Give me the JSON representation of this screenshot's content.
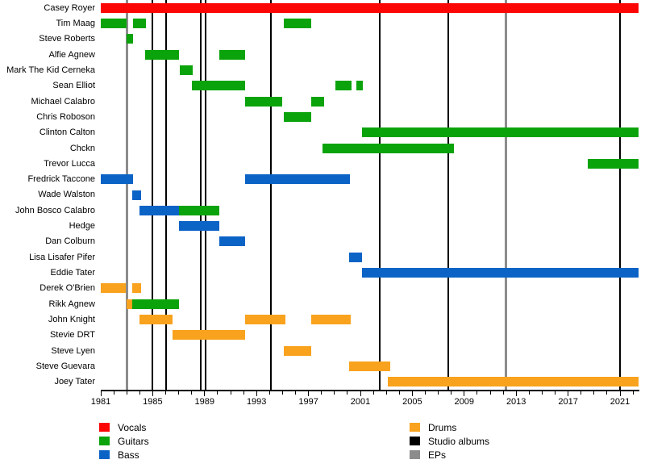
{
  "chart_data": {
    "type": "timeline",
    "title": "",
    "x_axis": {
      "start": 1981,
      "end": 2022.4,
      "minor_tick_step": 1,
      "label_years": [
        "1981",
        "1985",
        "1989",
        "1993",
        "1997",
        "2001",
        "2005",
        "2009",
        "2013",
        "2017",
        "2021"
      ]
    },
    "present": 2022.4,
    "roles": {
      "vocals": "#fb0505",
      "guitars": "#0ba30b",
      "bass": "#0b63c6",
      "drums": "#f9a21e"
    },
    "events": {
      "studio_albums": {
        "label": "Studio albums",
        "color": "#000000",
        "years": [
          1985.0,
          1986.0,
          1988.7,
          1989.1,
          1994.1,
          2002.5,
          2007.8,
          2021.0
        ]
      },
      "eps": {
        "label": "EPs",
        "color": "#8c8c8c",
        "years": [
          1983.0,
          2012.2
        ]
      }
    },
    "members": [
      {
        "name": "Casey Royer",
        "bars": [
          {
            "role": "vocals",
            "start": 1981,
            "end": "present"
          }
        ]
      },
      {
        "name": "Tim Maag",
        "bars": [
          {
            "role": "guitars",
            "start": 1981,
            "end": 1983.0
          },
          {
            "role": "guitars",
            "start": 1983.5,
            "end": 1984.5
          },
          {
            "role": "guitars",
            "start": 1995.1,
            "end": 1997.2
          }
        ]
      },
      {
        "name": "Steve Roberts",
        "bars": [
          {
            "role": "guitars",
            "start": 1983.0,
            "end": 1983.5
          }
        ]
      },
      {
        "name": "Alfie Agnew",
        "bars": [
          {
            "role": "guitars",
            "start": 1984.4,
            "end": 1987.0
          },
          {
            "role": "guitars",
            "start": 1990.1,
            "end": 1992.1
          }
        ]
      },
      {
        "name": "Mark The Kid Cerneka",
        "bars": [
          {
            "role": "guitars",
            "start": 1987.1,
            "end": 1988.1
          }
        ]
      },
      {
        "name": "Sean Elliot",
        "bars": [
          {
            "role": "guitars",
            "start": 1988.0,
            "end": 1992.1
          },
          {
            "role": "guitars",
            "start": 1999.1,
            "end": 2000.3
          },
          {
            "role": "guitars",
            "start": 2000.7,
            "end": 2001.2
          }
        ]
      },
      {
        "name": "Michael Calabro",
        "bars": [
          {
            "role": "guitars",
            "start": 1992.1,
            "end": 1995.0
          },
          {
            "role": "guitars",
            "start": 1997.2,
            "end": 1998.2
          }
        ]
      },
      {
        "name": "Chris Roboson",
        "bars": [
          {
            "role": "guitars",
            "start": 1995.1,
            "end": 1997.2
          }
        ]
      },
      {
        "name": "Clinton Calton",
        "bars": [
          {
            "role": "guitars",
            "start": 2001.1,
            "end": "present"
          }
        ]
      },
      {
        "name": "Chckn",
        "bars": [
          {
            "role": "guitars",
            "start": 1998.1,
            "end": 2008.2
          }
        ]
      },
      {
        "name": "Trevor Lucca",
        "bars": [
          {
            "role": "guitars",
            "start": 2018.5,
            "end": "present"
          }
        ]
      },
      {
        "name": "Fredrick Taccone",
        "bars": [
          {
            "role": "bass",
            "start": 1981,
            "end": 1983.5
          },
          {
            "role": "bass",
            "start": 1992.1,
            "end": 2000.2
          }
        ]
      },
      {
        "name": "Wade Walston",
        "bars": [
          {
            "role": "bass",
            "start": 1983.4,
            "end": 1984.1
          }
        ]
      },
      {
        "name": "John Bosco Calabro",
        "bars": [
          {
            "role": "bass",
            "start": 1984.0,
            "end": 1987.0
          },
          {
            "role": "guitars",
            "start": 1987.0,
            "end": 1990.1
          }
        ]
      },
      {
        "name": "Hedge",
        "bars": [
          {
            "role": "bass",
            "start": 1987.0,
            "end": 1990.1
          }
        ]
      },
      {
        "name": "Dan Colburn",
        "bars": [
          {
            "role": "bass",
            "start": 1990.1,
            "end": 1992.1
          }
        ]
      },
      {
        "name": "Lisa Lisafer Pifer",
        "bars": [
          {
            "role": "bass",
            "start": 2000.1,
            "end": 2001.1
          }
        ]
      },
      {
        "name": "Eddie Tater",
        "bars": [
          {
            "role": "bass",
            "start": 2001.1,
            "end": "present"
          }
        ]
      },
      {
        "name": "Derek O'Brien",
        "bars": [
          {
            "role": "drums",
            "start": 1981,
            "end": 1982.9
          },
          {
            "role": "drums",
            "start": 1983.4,
            "end": 1984.1
          }
        ]
      },
      {
        "name": "Rikk Agnew",
        "bars": [
          {
            "role": "drums",
            "start": 1983.0,
            "end": 1983.4
          },
          {
            "role": "guitars",
            "start": 1983.4,
            "end": 1987.0
          }
        ]
      },
      {
        "name": "John Knight",
        "bars": [
          {
            "role": "drums",
            "start": 1984.0,
            "end": 1986.5
          },
          {
            "role": "drums",
            "start": 1992.1,
            "end": 1995.2
          },
          {
            "role": "drums",
            "start": 1997.2,
            "end": 2000.25
          }
        ]
      },
      {
        "name": "Stevie DRT",
        "bars": [
          {
            "role": "drums",
            "start": 1986.5,
            "end": 1992.1
          }
        ]
      },
      {
        "name": "Steve Lyen",
        "bars": [
          {
            "role": "drums",
            "start": 1995.1,
            "end": 1997.2
          }
        ]
      },
      {
        "name": "Steve Guevara",
        "bars": [
          {
            "role": "drums",
            "start": 2000.1,
            "end": 2003.3
          }
        ]
      },
      {
        "name": "Joey Tater",
        "bars": [
          {
            "role": "drums",
            "start": 2003.1,
            "end": "present"
          }
        ]
      }
    ],
    "legend": {
      "columns": [
        [
          {
            "label": "Vocals",
            "role": "vocals"
          },
          {
            "label": "Guitars",
            "role": "guitars"
          },
          {
            "label": "Bass",
            "role": "bass"
          }
        ],
        [
          {
            "label": "Drums",
            "role": "drums"
          },
          {
            "label": "Studio albums",
            "color": "#000000"
          },
          {
            "label": "EPs",
            "color": "#8c8c8c"
          }
        ]
      ]
    }
  }
}
